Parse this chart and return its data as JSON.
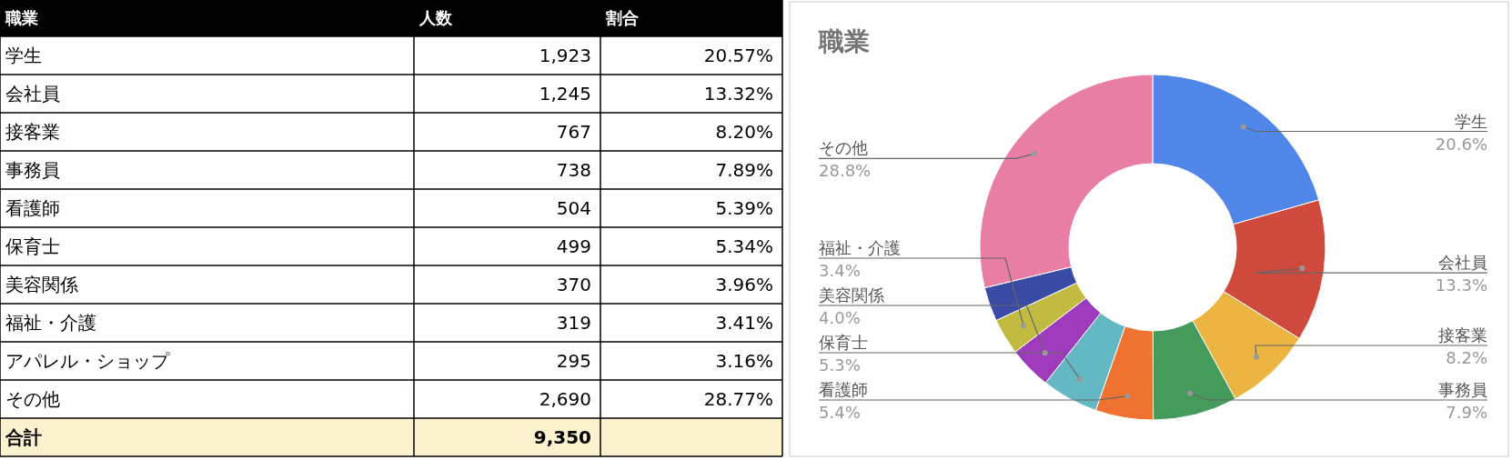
{
  "chart_data": [
    {
      "type": "other",
      "title": "職業",
      "categories": [
        "学生",
        "会社員",
        "接客業",
        "事務員",
        "看護師",
        "保育士",
        "美容関係",
        "福祉・介護",
        "アパレル・ショップ",
        "その他"
      ],
      "series": [
        {
          "name": "人数",
          "values": [
            1923,
            1245,
            767,
            738,
            504,
            499,
            370,
            319,
            295,
            2690
          ],
          "value_labels": [
            "1,923",
            "1,245",
            "767",
            "738",
            "504",
            "499",
            "370",
            "319",
            "295",
            "2,690"
          ]
        },
        {
          "name": "割合",
          "values": [
            20.57,
            13.32,
            8.2,
            7.89,
            5.39,
            5.34,
            3.96,
            3.41,
            3.16,
            28.77
          ],
          "value_labels": [
            "20.57%",
            "13.32%",
            "8.20%",
            "7.89%",
            "5.39%",
            "5.34%",
            "3.96%",
            "3.41%",
            "3.16%",
            "28.77%"
          ]
        }
      ],
      "annotations": [
        "合計"
      ],
      "totals": [
        "9,350"
      ]
    },
    {
      "type": "donut",
      "title": "職業",
      "categories": [
        "学生",
        "会社員",
        "接客業",
        "事務員",
        "看護師",
        "保育士",
        "美容関係",
        "福祉・介護",
        null,
        "その他"
      ],
      "values": [
        20.6,
        13.3,
        8.2,
        7.9,
        5.4,
        5.3,
        4.0,
        3.4,
        3.2,
        28.8
      ],
      "value_labels": [
        "20.6%",
        "13.3%",
        "8.2%",
        "7.9%",
        "5.4%",
        "5.3%",
        "4.0%",
        "3.4%",
        null,
        "28.8%"
      ],
      "colors": [
        "#4f86e8",
        "#cf4a3c",
        "#ecb541",
        "#459b5c",
        "#ef7230",
        "#63b8c4",
        "#9e3bbd",
        "#c1bb41",
        "#3a4ba6",
        "#e87da6"
      ]
    }
  ]
}
